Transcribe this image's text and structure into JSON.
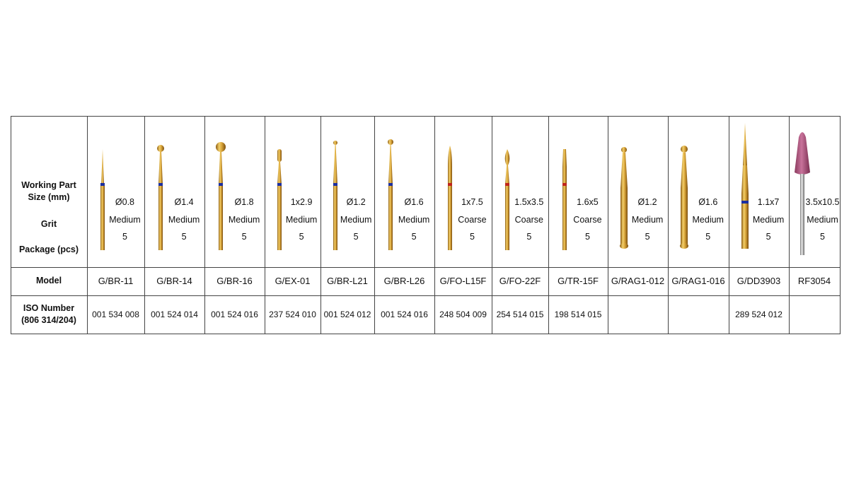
{
  "table": {
    "header": {
      "size": "Working Part Size (mm)",
      "grit": "Grit",
      "package": "Package (pcs)",
      "model": "Model",
      "iso": "ISO Number (806 314/204)"
    },
    "columns": [
      {
        "size": "Ø0.8",
        "grit": "Medium",
        "package": "5",
        "model": "G/BR-11",
        "iso": "001 534 008"
      },
      {
        "size": "Ø1.4",
        "grit": "Medium",
        "package": "5",
        "model": "G/BR-14",
        "iso": "001 524 014"
      },
      {
        "size": "Ø1.8",
        "grit": "Medium",
        "package": "5",
        "model": "G/BR-16",
        "iso": "001 524 016"
      },
      {
        "size": "1x2.9",
        "grit": "Medium",
        "package": "5",
        "model": "G/EX-01",
        "iso": "237 524 010"
      },
      {
        "size": "Ø1.2",
        "grit": "Medium",
        "package": "5",
        "model": "G/BR-L21",
        "iso": "001 524 012"
      },
      {
        "size": "Ø1.6",
        "grit": "Medium",
        "package": "5",
        "model": "G/BR-L26",
        "iso": "001 524 016"
      },
      {
        "size": "1x7.5",
        "grit": "Coarse",
        "package": "5",
        "model": "G/FO-L15F",
        "iso": "248 504 009"
      },
      {
        "size": "1.5x3.5",
        "grit": "Coarse",
        "package": "5",
        "model": "G/FO-22F",
        "iso": "254 514 015"
      },
      {
        "size": "1.6x5",
        "grit": "Coarse",
        "package": "5",
        "model": "G/TR-15F",
        "iso": "198 514 015"
      },
      {
        "size": "Ø1.2",
        "grit": "Medium",
        "package": "5",
        "model": "G/RAG1-012"
      },
      {
        "size": "Ø1.6",
        "grit": "Medium",
        "package": "5",
        "model": "G/RAG1-016"
      },
      {
        "size": "1.1x7",
        "grit": "Medium",
        "package": "5",
        "model": "G/DD3903",
        "iso": "289 524 012"
      },
      {
        "size": "3.5x10.5",
        "grit": "Medium",
        "package": "5",
        "model": "RF3054"
      }
    ]
  }
}
